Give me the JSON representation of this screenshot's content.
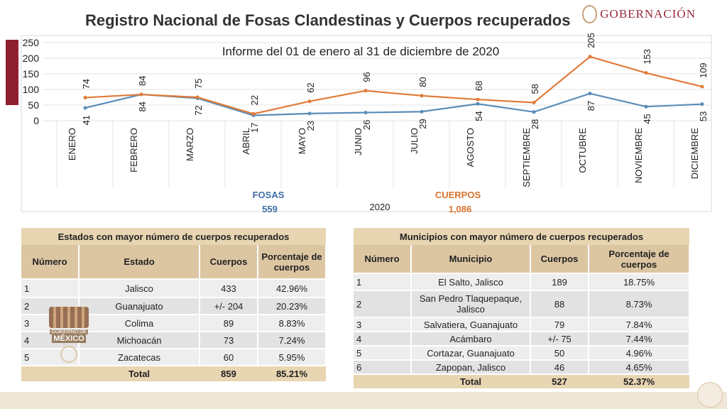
{
  "header": {
    "title": "Registro Nacional de Fosas Clandestinas y Cuerpos recuperados",
    "logo_text": "GOBERNACIÓN"
  },
  "chart_data": {
    "type": "line",
    "subtitle": "Informe del 01 de enero al 31 de diciembre de 2020",
    "categories": [
      "ENERO",
      "FEBRERO",
      "MARZO",
      "ABRIL",
      "MAYO",
      "JUNIO",
      "JULIO",
      "AGOSTO",
      "SEPTIEMBRE",
      "OCTUBRE",
      "NOVIEMBRE",
      "DICIEMBRE"
    ],
    "series": [
      {
        "name": "FOSAS",
        "total": "559",
        "color": "#5b8db8",
        "values": [
          41,
          84,
          72,
          17,
          23,
          26,
          29,
          54,
          28,
          87,
          45,
          53
        ]
      },
      {
        "name": "CUERPOS",
        "total": "1,086",
        "color": "#e07b39",
        "values": [
          74,
          84,
          75,
          22,
          62,
          96,
          80,
          68,
          58,
          205,
          153,
          109
        ]
      }
    ],
    "xlabel": "2020",
    "yticks": [
      0,
      50,
      100,
      150,
      200,
      250
    ],
    "ylim": [
      0,
      250
    ],
    "grid": true
  },
  "estados": {
    "title": "Estados con mayor número de cuerpos recuperados",
    "headers": [
      "Número",
      "Estado",
      "Cuerpos",
      "Porcentaje de cuerpos"
    ],
    "rows": [
      [
        "1",
        "Jalisco",
        "433",
        "42.96%"
      ],
      [
        "2",
        "Guanajuato",
        "+/- 204",
        "20.23%"
      ],
      [
        "3",
        "Colima",
        "89",
        "8.83%"
      ],
      [
        "4",
        "Michoacán",
        "73",
        "7.24%"
      ],
      [
        "5",
        "Zacatecas",
        "60",
        "5.95%"
      ]
    ],
    "total": [
      "Total",
      "859",
      "85.21%"
    ]
  },
  "municipios": {
    "title": "Municipios con mayor número de cuerpos recuperados",
    "headers": [
      "Número",
      "Municipio",
      "Cuerpos",
      "Porcentaje de cuerpos"
    ],
    "rows": [
      [
        "1",
        "El Salto, Jalisco",
        "189",
        "18.75%"
      ],
      [
        "2",
        "San Pedro Tlaquepaque, Jalisco",
        "88",
        "8.73%"
      ],
      [
        "3",
        "Salvatiera, Guanajuato",
        "79",
        "7.84%"
      ],
      [
        "4",
        "Acámbaro",
        "+/- 75",
        "7.44%"
      ],
      [
        "5",
        "Cortazar, Guanajuato",
        "50",
        "4.96%"
      ],
      [
        "6",
        "Zapopan, Jalisco",
        "46",
        "4.65%"
      ]
    ],
    "total": [
      "Total",
      "527",
      "52.37%"
    ]
  },
  "watermark": {
    "line1": "GOBIERNO DE",
    "line2": "MÉXICO"
  }
}
